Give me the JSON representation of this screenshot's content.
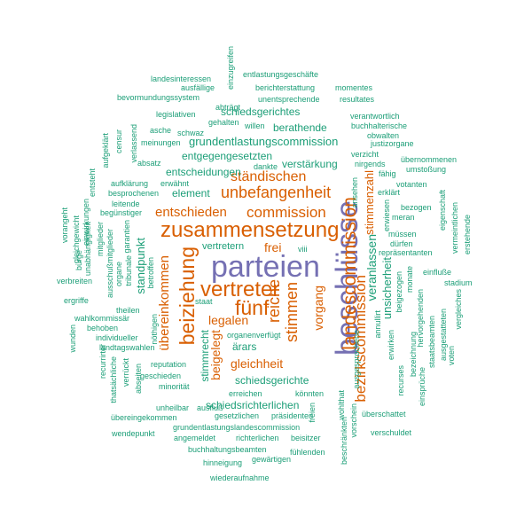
{
  "colors": {
    "purple": "#7570b3",
    "orange": "#d95f02",
    "teal": "#1b9e77"
  },
  "words": [
    {
      "t": "parteien",
      "c": "purple"
    },
    {
      "t": "beschlüsse",
      "c": "purple"
    },
    {
      "t": "zusammensetzung",
      "c": "orange"
    },
    {
      "t": "vertreter",
      "c": "orange"
    },
    {
      "t": "fünf",
      "c": "orange"
    },
    {
      "t": "beiziehung",
      "c": "orange"
    },
    {
      "t": "landescommission",
      "c": "orange"
    },
    {
      "t": "unbefangenheit",
      "c": "orange"
    },
    {
      "t": "entschieden",
      "c": "orange"
    },
    {
      "t": "commission",
      "c": "orange"
    },
    {
      "t": "reiche",
      "c": "orange"
    },
    {
      "t": "stimmen",
      "c": "orange"
    },
    {
      "t": "bezirkscommission",
      "c": "orange"
    },
    {
      "t": "ständischen",
      "c": "orange"
    },
    {
      "t": "übereinkommen",
      "c": "orange"
    },
    {
      "t": "gleichheit",
      "c": "orange"
    },
    {
      "t": "beigelegt",
      "c": "orange"
    },
    {
      "t": "legalen",
      "c": "orange"
    },
    {
      "t": "vorgang",
      "c": "orange"
    },
    {
      "t": "stimmenzahl",
      "c": "orange"
    },
    {
      "t": "frei",
      "c": "orange"
    },
    {
      "t": "veranlassen",
      "c": "teal"
    },
    {
      "t": "unsicherheit",
      "c": "teal"
    },
    {
      "t": "schiedsgerichtes",
      "c": "teal"
    },
    {
      "t": "berathende",
      "c": "teal"
    },
    {
      "t": "grundentlastungscommission",
      "c": "teal"
    },
    {
      "t": "entgegengesetzten",
      "c": "teal"
    },
    {
      "t": "verstärkung",
      "c": "teal"
    },
    {
      "t": "entscheidungen",
      "c": "teal"
    },
    {
      "t": "element",
      "c": "teal"
    },
    {
      "t": "standpunkt",
      "c": "teal"
    },
    {
      "t": "vertretern",
      "c": "teal"
    },
    {
      "t": "ärars",
      "c": "teal"
    },
    {
      "t": "schiedsgerichte",
      "c": "teal"
    },
    {
      "t": "schiedsrichterlichen",
      "c": "teal"
    },
    {
      "t": "stimmrecht",
      "c": "teal"
    },
    {
      "t": "entlastungsgeschäfte",
      "c": "teal"
    },
    {
      "t": "landesinteressen",
      "c": "teal"
    },
    {
      "t": "ausfällige",
      "c": "teal"
    },
    {
      "t": "einzugreifen",
      "c": "teal"
    },
    {
      "t": "berichterstattung",
      "c": "teal"
    },
    {
      "t": "momentes",
      "c": "teal"
    },
    {
      "t": "bevormundungssystem",
      "c": "teal"
    },
    {
      "t": "unentsprechende",
      "c": "teal"
    },
    {
      "t": "resultates",
      "c": "teal"
    },
    {
      "t": "abträgt",
      "c": "teal"
    },
    {
      "t": "legislativen",
      "c": "teal"
    },
    {
      "t": "verantwortlich",
      "c": "teal"
    },
    {
      "t": "gehalten",
      "c": "teal"
    },
    {
      "t": "willen",
      "c": "teal"
    },
    {
      "t": "buchhalterische",
      "c": "teal"
    },
    {
      "t": "asche",
      "c": "teal"
    },
    {
      "t": "schwaz",
      "c": "teal"
    },
    {
      "t": "obwalten",
      "c": "teal"
    },
    {
      "t": "justizorgane",
      "c": "teal"
    },
    {
      "t": "verlassend",
      "c": "teal"
    },
    {
      "t": "meinungen",
      "c": "teal"
    },
    {
      "t": "censur",
      "c": "teal"
    },
    {
      "t": "aufgeklärt",
      "c": "teal"
    },
    {
      "t": "verzicht",
      "c": "teal"
    },
    {
      "t": "nirgends",
      "c": "teal"
    },
    {
      "t": "übernommenen",
      "c": "teal"
    },
    {
      "t": "absatz",
      "c": "teal"
    },
    {
      "t": "dankte",
      "c": "teal"
    },
    {
      "t": "umstoßung",
      "c": "teal"
    },
    {
      "t": "aufklärung",
      "c": "teal"
    },
    {
      "t": "erwähnt",
      "c": "teal"
    },
    {
      "t": "votanten",
      "c": "teal"
    },
    {
      "t": "besprochenen",
      "c": "teal"
    },
    {
      "t": "leitende",
      "c": "teal"
    },
    {
      "t": "erklärt",
      "c": "teal"
    },
    {
      "t": "entsteht",
      "c": "teal"
    },
    {
      "t": "begünstiger",
      "c": "teal"
    },
    {
      "t": "ansehen",
      "c": "teal"
    },
    {
      "t": "bezogen",
      "c": "teal"
    },
    {
      "t": "eigenschaft",
      "c": "teal"
    },
    {
      "t": "einwirkungen",
      "c": "teal"
    },
    {
      "t": "erwiesen",
      "c": "teal"
    },
    {
      "t": "meran",
      "c": "teal"
    },
    {
      "t": "vermeintlichen",
      "c": "teal"
    },
    {
      "t": "erstehende",
      "c": "teal"
    },
    {
      "t": "vorangeht",
      "c": "teal"
    },
    {
      "t": "gleichgewicht",
      "c": "teal"
    },
    {
      "t": "mitglieder",
      "c": "teal"
    },
    {
      "t": "garantien",
      "c": "teal"
    },
    {
      "t": "müssen",
      "c": "teal"
    },
    {
      "t": "dürfen",
      "c": "teal"
    },
    {
      "t": "bürge",
      "c": "teal"
    },
    {
      "t": "unabhängigkeit",
      "c": "teal"
    },
    {
      "t": "ausschußmitglieder",
      "c": "teal"
    },
    {
      "t": "repräsentanten",
      "c": "teal"
    },
    {
      "t": "verbreiten",
      "c": "teal"
    },
    {
      "t": "organe",
      "c": "teal"
    },
    {
      "t": "tribunale",
      "c": "teal"
    },
    {
      "t": "betroffen",
      "c": "teal"
    },
    {
      "t": "viii",
      "c": "teal"
    },
    {
      "t": "einfluße",
      "c": "teal"
    },
    {
      "t": "stadium",
      "c": "teal"
    },
    {
      "t": "ergriffe",
      "c": "teal"
    },
    {
      "t": "theilen",
      "c": "teal"
    },
    {
      "t": "wahlkommissär",
      "c": "teal"
    },
    {
      "t": "staat",
      "c": "teal"
    },
    {
      "t": "vergleiches",
      "c": "teal"
    },
    {
      "t": "monate",
      "c": "teal"
    },
    {
      "t": "beigezogen",
      "c": "teal"
    },
    {
      "t": "wunden",
      "c": "teal"
    },
    {
      "t": "behoben",
      "c": "teal"
    },
    {
      "t": "individueller",
      "c": "teal"
    },
    {
      "t": "nöthigen",
      "c": "teal"
    },
    {
      "t": "landtagswahlen",
      "c": "teal"
    },
    {
      "t": "organen",
      "c": "teal"
    },
    {
      "t": "verfügt",
      "c": "teal"
    },
    {
      "t": "hervorgehenden",
      "c": "teal"
    },
    {
      "t": "ausgestatteten",
      "c": "teal"
    },
    {
      "t": "staatsbeamten",
      "c": "teal"
    },
    {
      "t": "voten",
      "c": "teal"
    },
    {
      "t": "annullirt",
      "c": "teal"
    },
    {
      "t": "erwirken",
      "c": "teal"
    },
    {
      "t": "ausgesprochene",
      "c": "teal"
    },
    {
      "t": "bezeichnung",
      "c": "teal"
    },
    {
      "t": "recurses",
      "c": "teal"
    },
    {
      "t": "einsprüche",
      "c": "teal"
    },
    {
      "t": "fähig",
      "c": "teal"
    },
    {
      "t": "recurrirter",
      "c": "teal"
    },
    {
      "t": "thatsächliche",
      "c": "teal"
    },
    {
      "t": "verrückt",
      "c": "teal"
    },
    {
      "t": "reputation",
      "c": "teal"
    },
    {
      "t": "abseiten",
      "c": "teal"
    },
    {
      "t": "geschieden",
      "c": "teal"
    },
    {
      "t": "minorität",
      "c": "teal"
    },
    {
      "t": "erreichen",
      "c": "teal"
    },
    {
      "t": "könnten",
      "c": "teal"
    },
    {
      "t": "unheilbar",
      "c": "teal"
    },
    {
      "t": "ausfluß",
      "c": "teal"
    },
    {
      "t": "übereingekommen",
      "c": "teal"
    },
    {
      "t": "gesetzlichen",
      "c": "teal"
    },
    {
      "t": "präsidenten",
      "c": "teal"
    },
    {
      "t": "wohlthat",
      "c": "teal"
    },
    {
      "t": "vorschein",
      "c": "teal"
    },
    {
      "t": "überschattet",
      "c": "teal"
    },
    {
      "t": "grundentlastungslandescommission",
      "c": "teal"
    },
    {
      "t": "freien",
      "c": "teal"
    },
    {
      "t": "wendepunkt",
      "c": "teal"
    },
    {
      "t": "angemeldet",
      "c": "teal"
    },
    {
      "t": "richterlichen",
      "c": "teal"
    },
    {
      "t": "beisitzer",
      "c": "teal"
    },
    {
      "t": "verschuldet",
      "c": "teal"
    },
    {
      "t": "beschränkten",
      "c": "teal"
    },
    {
      "t": "buchhaltungsbeamten",
      "c": "teal"
    },
    {
      "t": "fühlenden",
      "c": "teal"
    },
    {
      "t": "hinneigung",
      "c": "teal"
    },
    {
      "t": "gewärtigen",
      "c": "teal"
    },
    {
      "t": "wiederaufnahme",
      "c": "teal"
    }
  ]
}
